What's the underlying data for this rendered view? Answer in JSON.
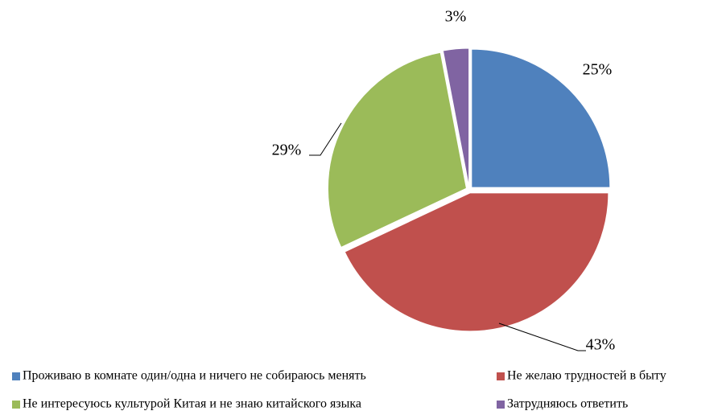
{
  "chart_data": {
    "type": "pie",
    "categories": [
      "Проживаю в комнате один/одна и ничего не собираюсь менять",
      "Не желаю трудностей в быту",
      "Не интересуюсь культурой Китая и не знаю китайского языка",
      "Затрудняюсь ответить"
    ],
    "values": [
      25,
      43,
      29,
      3
    ],
    "value_labels": [
      "25%",
      "43%",
      "29%",
      "3%"
    ],
    "colors": [
      "#4f81bd",
      "#c0504d",
      "#9bbb59",
      "#8064a2"
    ],
    "legend": "bottom"
  }
}
